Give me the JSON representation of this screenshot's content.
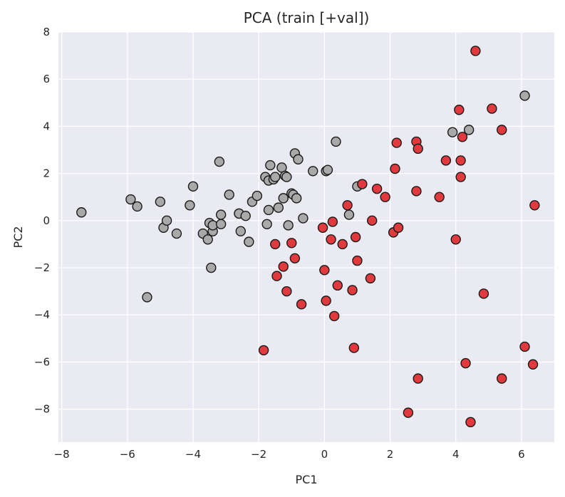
{
  "chart_data": {
    "type": "scatter",
    "title": "PCA (train [+val])",
    "xlabel": "PC1",
    "ylabel": "PC2",
    "xlim": [
      -8.1,
      7.0
    ],
    "ylim": [
      -9.4,
      8.0
    ],
    "xticks": [
      -8,
      -6,
      -4,
      -2,
      0,
      2,
      4,
      6
    ],
    "yticks": [
      -8,
      -6,
      -4,
      -2,
      0,
      2,
      4,
      6,
      8
    ],
    "xtick_labels": [
      "−8",
      "−6",
      "−4",
      "−2",
      "0",
      "2",
      "4",
      "6"
    ],
    "ytick_labels": [
      "−8",
      "−6",
      "−4",
      "−2",
      "0",
      "2",
      "4",
      "6",
      "8"
    ],
    "grid": true,
    "background": "#eaeaf2",
    "series": [
      {
        "color": "#a9a9a9",
        "x": [
          -7.4,
          -5.9,
          -5.7,
          -5.4,
          -5.0,
          -4.9,
          -4.8,
          -4.5,
          -4.1,
          -4.0,
          -3.7,
          -3.55,
          -3.5,
          -3.45,
          -3.4,
          -3.4,
          -3.2,
          -3.15,
          -3.15,
          -2.9,
          -2.6,
          -2.6,
          -2.55,
          -2.4,
          -2.3,
          -2.2,
          -2.05,
          -1.8,
          -1.75,
          -1.7,
          -1.7,
          -1.65,
          -1.55,
          -1.5,
          -1.4,
          -1.3,
          -1.25,
          -1.2,
          -1.15,
          -1.1,
          -1.0,
          -0.95,
          -0.9,
          -0.85,
          -0.8,
          -0.65,
          -0.35,
          0.05,
          0.1,
          0.35,
          0.75,
          1.0,
          3.9,
          4.4,
          6.1
        ],
        "y": [
          0.35,
          0.9,
          0.6,
          -3.25,
          0.8,
          -0.3,
          0.0,
          -0.55,
          0.65,
          1.45,
          -0.55,
          -0.8,
          -0.1,
          -2.0,
          -0.45,
          -0.2,
          2.5,
          0.25,
          -0.15,
          1.1,
          0.3,
          0.3,
          -0.45,
          0.2,
          -0.9,
          0.8,
          1.05,
          1.85,
          -0.15,
          1.7,
          0.45,
          2.35,
          1.75,
          1.85,
          0.55,
          2.25,
          0.95,
          1.9,
          1.85,
          -0.2,
          1.15,
          1.1,
          2.85,
          0.95,
          2.6,
          0.1,
          2.1,
          2.1,
          2.15,
          3.35,
          0.25,
          1.45,
          3.75,
          3.85,
          5.3
        ]
      },
      {
        "color": "#e03a3e",
        "x": [
          -1.85,
          -1.5,
          -1.45,
          -1.25,
          -1.15,
          -1.0,
          -0.9,
          -0.7,
          -0.05,
          0.0,
          0.05,
          0.2,
          0.25,
          0.3,
          0.4,
          0.55,
          0.7,
          0.85,
          0.9,
          0.95,
          1.0,
          1.15,
          1.4,
          1.45,
          1.6,
          1.85,
          2.1,
          2.15,
          2.2,
          2.25,
          2.55,
          2.8,
          2.8,
          2.85,
          2.85,
          3.5,
          3.7,
          4.0,
          4.1,
          4.15,
          4.15,
          4.2,
          4.3,
          4.45,
          4.6,
          4.85,
          5.1,
          5.4,
          5.4,
          6.1,
          6.35,
          6.4
        ],
        "y": [
          -5.5,
          -1.0,
          -2.35,
          -1.95,
          -3.0,
          -0.95,
          -1.6,
          -3.55,
          -0.3,
          -2.1,
          -3.4,
          -0.8,
          -0.05,
          -4.05,
          -2.75,
          -1.0,
          0.65,
          -2.95,
          -5.4,
          -0.7,
          -1.7,
          1.55,
          -2.45,
          0.0,
          1.35,
          1.0,
          -0.5,
          2.2,
          3.3,
          -0.3,
          -8.15,
          3.35,
          1.25,
          3.05,
          -6.7,
          1.0,
          2.55,
          -0.8,
          4.7,
          1.85,
          2.55,
          3.55,
          -6.05,
          -8.55,
          7.2,
          -3.1,
          4.75,
          3.85,
          -6.7,
          -5.35,
          -6.1,
          0.65
        ]
      }
    ]
  }
}
